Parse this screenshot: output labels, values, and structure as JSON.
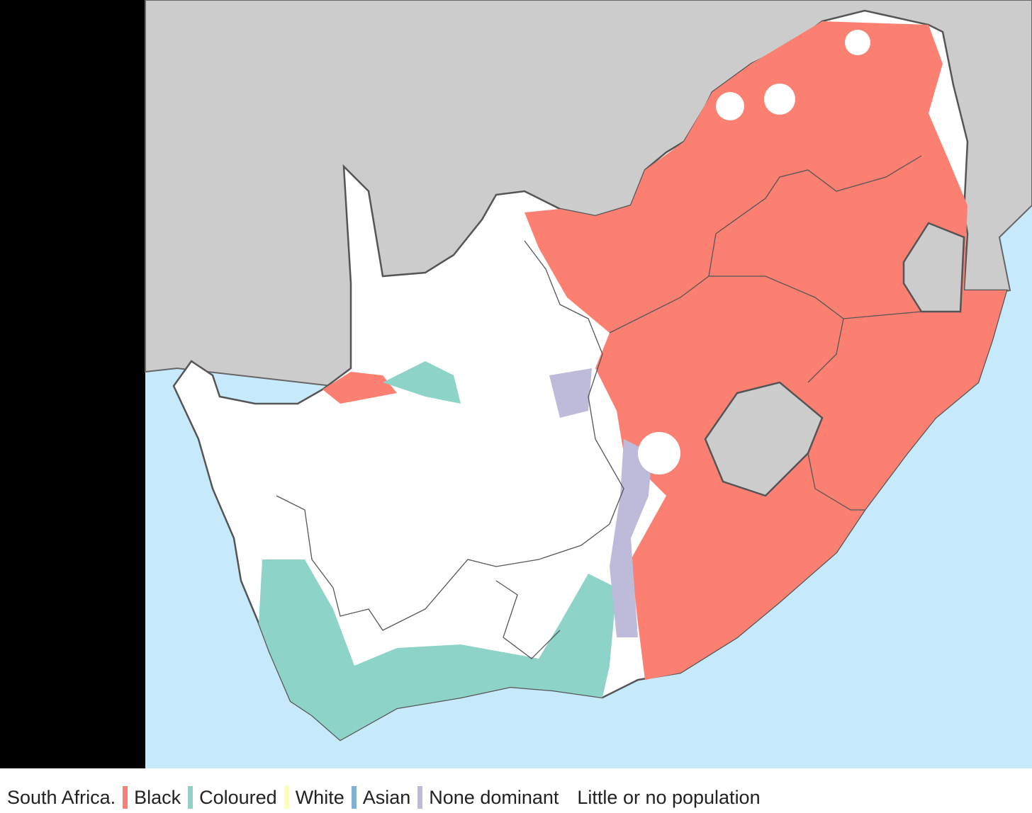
{
  "legend": {
    "title": "South Africa.",
    "items": [
      {
        "label": "Black",
        "color": "#fb8072"
      },
      {
        "label": "Coloured",
        "color": "#8dd3c7"
      },
      {
        "label": "White",
        "color": "#ffffb3"
      },
      {
        "label": "Asian",
        "color": "#80b1d3"
      },
      {
        "label": "None dominant",
        "color": "#bebada"
      },
      {
        "label": "Little or no population",
        "color": "#ffffff"
      }
    ]
  }
}
